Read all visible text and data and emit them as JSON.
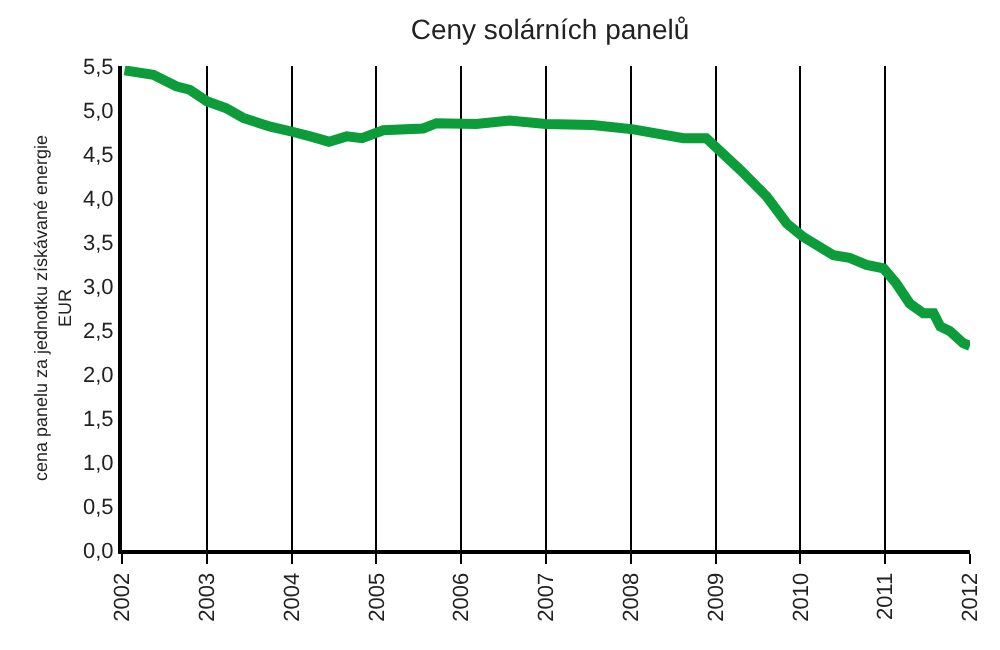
{
  "chart_data": {
    "type": "line",
    "title": "Ceny solárních panelů",
    "ylabel": "cena panelu za jednotku získávané energie\nEUR",
    "x": [
      2002.03,
      2002.37,
      2002.64,
      2002.8,
      2003.0,
      2003.23,
      2003.43,
      2003.75,
      2004.02,
      2004.22,
      2004.44,
      2004.65,
      2004.83,
      2005.08,
      2005.55,
      2005.71,
      2006.18,
      2006.57,
      2007.0,
      2007.55,
      2008.03,
      2008.62,
      2008.89,
      2009.29,
      2009.6,
      2009.84,
      2010.03,
      2010.39,
      2010.58,
      2010.78,
      2010.98,
      2011.13,
      2011.29,
      2011.45,
      2011.57,
      2011.65,
      2011.76,
      2011.92,
      2012.0
    ],
    "series": [
      {
        "color": "#0c9c3a",
        "values": [
          5.45,
          5.4,
          5.27,
          5.23,
          5.1,
          5.02,
          4.91,
          4.81,
          4.75,
          4.7,
          4.64,
          4.7,
          4.68,
          4.77,
          4.79,
          4.85,
          4.84,
          4.88,
          4.84,
          4.83,
          4.78,
          4.68,
          4.68,
          4.32,
          4.02,
          3.71,
          3.56,
          3.35,
          3.32,
          3.24,
          3.2,
          3.03,
          2.8,
          2.69,
          2.69,
          2.54,
          2.49,
          2.35,
          2.32
        ]
      }
    ],
    "xlim": [
      2002,
      2012
    ],
    "xticks": [
      2002,
      2003,
      2004,
      2005,
      2006,
      2007,
      2008,
      2009,
      2010,
      2011,
      2012
    ],
    "ylim": [
      0,
      5.5
    ],
    "yticks": [
      {
        "value": 0,
        "label": "0,0"
      },
      {
        "value": 0.5,
        "label": "0,5"
      },
      {
        "value": 1,
        "label": "1,0"
      },
      {
        "value": 1.5,
        "label": "1,5"
      },
      {
        "value": 2,
        "label": "2,0"
      },
      {
        "value": 2.5,
        "label": "2,5"
      },
      {
        "value": 3,
        "label": "3,0"
      },
      {
        "value": 3.5,
        "label": "3,5"
      },
      {
        "value": 4,
        "label": "4,0"
      },
      {
        "value": 4.5,
        "label": "4,5"
      },
      {
        "value": 5,
        "label": "5,0"
      },
      {
        "value": 5.5,
        "label": "5,5"
      }
    ],
    "grid": "x",
    "marker": "none",
    "line_style": "solid"
  }
}
